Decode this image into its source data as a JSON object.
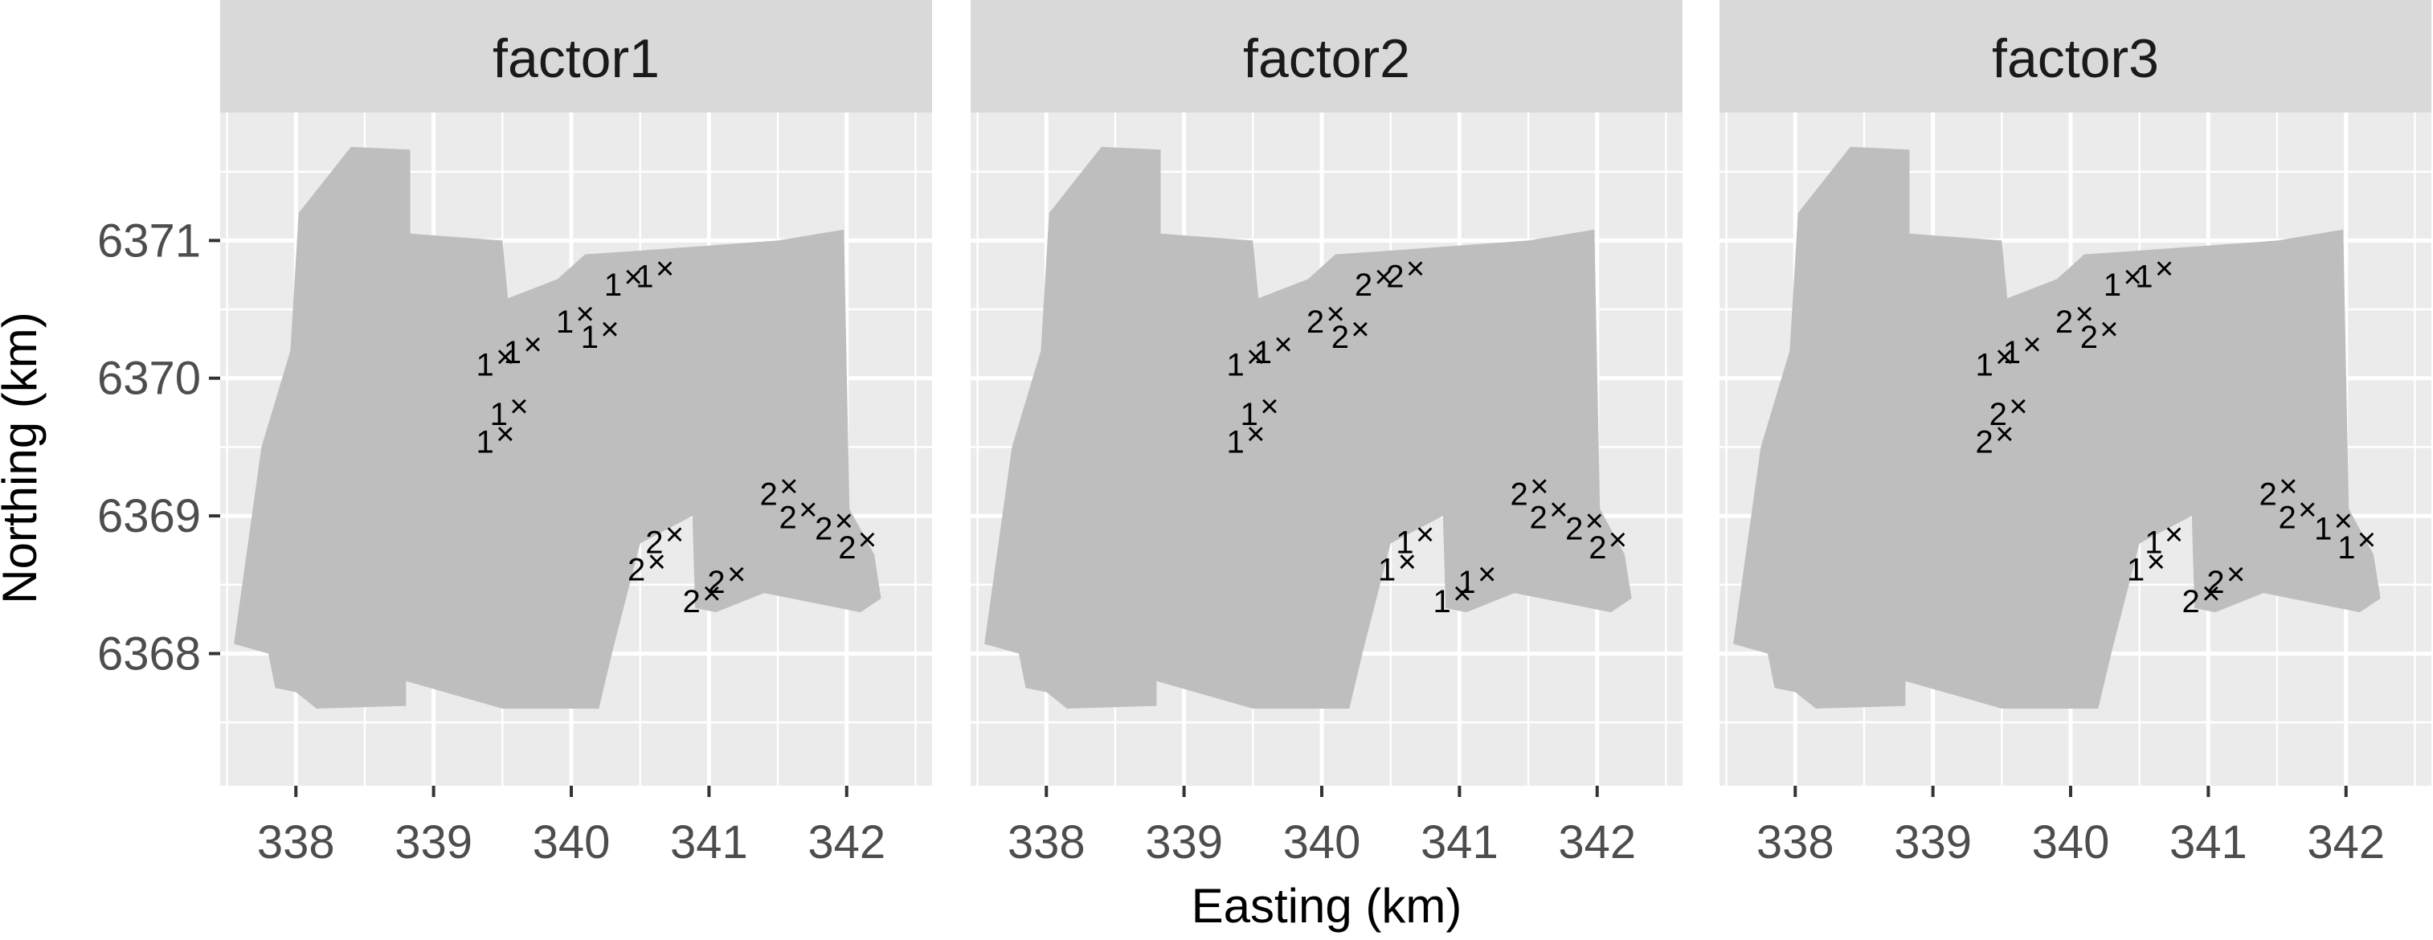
{
  "chart_data": {
    "type": "scatter",
    "xlabel": "Easting (km)",
    "ylabel": "Northing (km)",
    "xlim": [
      337.45,
      342.62
    ],
    "ylim": [
      6367.04,
      6371.93
    ],
    "xticks": [
      338,
      339,
      340,
      341,
      342
    ],
    "yticks": [
      6368,
      6369,
      6370,
      6371
    ],
    "xminor": [
      337.5,
      338.5,
      339.5,
      340.5,
      341.5,
      342.5
    ],
    "yminor": [
      6367.5,
      6368.5,
      6369.5,
      6370.5,
      6371.5
    ],
    "grid": true,
    "colors": {
      "panel_bg": "#ebebeb",
      "strip_bg": "#d9d9d9",
      "grid": "#ffffff",
      "region": "#bebebe",
      "marker": "#000000",
      "tick": "#333333"
    },
    "region_outline": [
      [
        338.4,
        6371.68
      ],
      [
        338.83,
        6371.66
      ],
      [
        338.83,
        6371.05
      ],
      [
        339.5,
        6371.0
      ],
      [
        339.54,
        6370.58
      ],
      [
        339.9,
        6370.72
      ],
      [
        340.1,
        6370.9
      ],
      [
        340.4,
        6370.92
      ],
      [
        341.5,
        6371.0
      ],
      [
        341.98,
        6371.08
      ],
      [
        342.02,
        6369.05
      ],
      [
        342.2,
        6368.72
      ],
      [
        342.25,
        6368.4
      ],
      [
        342.1,
        6368.3
      ],
      [
        341.4,
        6368.44
      ],
      [
        341.05,
        6368.3
      ],
      [
        340.9,
        6368.33
      ],
      [
        340.88,
        6369.0
      ],
      [
        340.5,
        6368.8
      ],
      [
        340.3,
        6368.02
      ],
      [
        340.2,
        6367.6
      ],
      [
        339.5,
        6367.6
      ],
      [
        338.8,
        6367.8
      ],
      [
        338.8,
        6367.62
      ],
      [
        338.15,
        6367.6
      ],
      [
        338.0,
        6367.72
      ],
      [
        337.85,
        6367.75
      ],
      [
        337.8,
        6368.0
      ],
      [
        337.55,
        6368.07
      ],
      [
        337.75,
        6369.5
      ],
      [
        337.96,
        6370.2
      ],
      [
        338.02,
        6371.2
      ]
    ],
    "points": [
      {
        "x": 339.52,
        "y": 6370.16
      },
      {
        "x": 339.72,
        "y": 6370.25
      },
      {
        "x": 339.62,
        "y": 6369.8
      },
      {
        "x": 339.52,
        "y": 6369.6
      },
      {
        "x": 340.1,
        "y": 6370.47
      },
      {
        "x": 340.28,
        "y": 6370.36
      },
      {
        "x": 340.45,
        "y": 6370.74
      },
      {
        "x": 340.68,
        "y": 6370.8
      },
      {
        "x": 341.58,
        "y": 6369.22
      },
      {
        "x": 341.72,
        "y": 6369.05
      },
      {
        "x": 341.98,
        "y": 6368.97
      },
      {
        "x": 342.15,
        "y": 6368.83
      },
      {
        "x": 340.75,
        "y": 6368.87
      },
      {
        "x": 340.62,
        "y": 6368.67
      },
      {
        "x": 341.2,
        "y": 6368.58
      },
      {
        "x": 341.02,
        "y": 6368.44
      }
    ],
    "panels": [
      {
        "name": "factor1",
        "labels": [
          "1",
          "1",
          "1",
          "1",
          "1",
          "1",
          "1",
          "1",
          "2",
          "2",
          "2",
          "2",
          "2",
          "2",
          "2",
          "2"
        ]
      },
      {
        "name": "factor2",
        "labels": [
          "1",
          "1",
          "1",
          "1",
          "2",
          "2",
          "2",
          "2",
          "2",
          "2",
          "2",
          "2",
          "1",
          "1",
          "1",
          "1"
        ]
      },
      {
        "name": "factor3",
        "labels": [
          "1",
          "1",
          "2",
          "2",
          "2",
          "2",
          "1",
          "1",
          "2",
          "2",
          "1",
          "1",
          "1",
          "1",
          "2",
          "2"
        ]
      }
    ]
  }
}
